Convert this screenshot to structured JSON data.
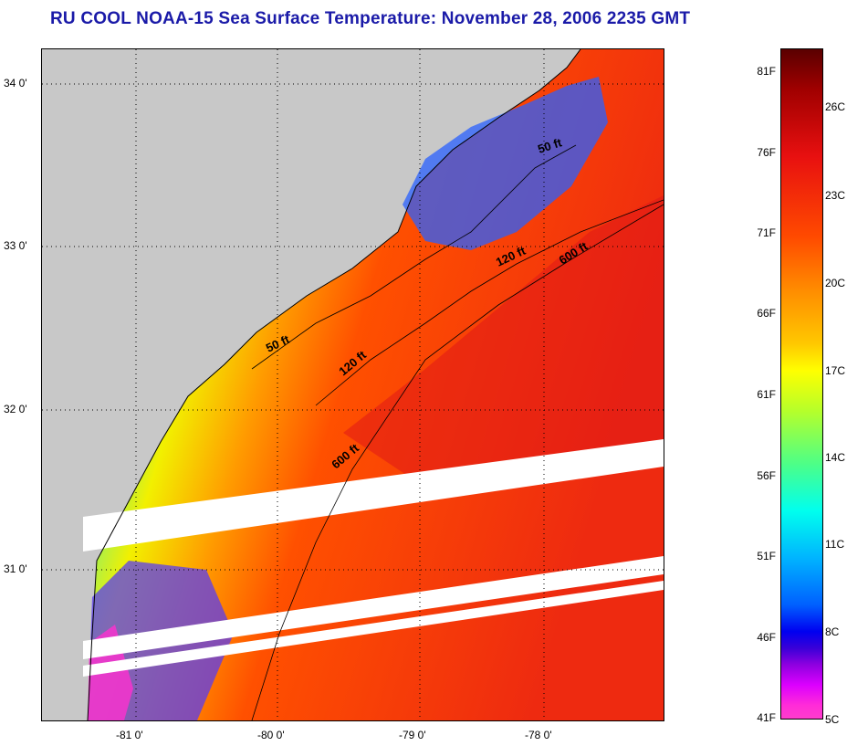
{
  "title": "RU COOL  NOAA-15  Sea Surface Temperature:  November 28, 2006 2235 GMT",
  "map": {
    "latitude_labels": [
      "34 0'",
      "33 0'",
      "32 0'",
      "31 0'"
    ],
    "longitude_labels": [
      "-81 0'",
      "-80 0'",
      "-79 0'",
      "-78 0'"
    ],
    "isobaths": [
      "50 ft",
      "120 ft",
      "600 ft",
      "50 ft",
      "120 ft",
      "600 ft"
    ]
  },
  "colorbar": {
    "fahrenheit": [
      "81F",
      "76F",
      "71F",
      "66F",
      "61F",
      "56F",
      "51F",
      "46F",
      "41F"
    ],
    "celsius": [
      "26C",
      "23C",
      "20C",
      "17C",
      "14C",
      "11C",
      "8C",
      "5C"
    ]
  }
}
